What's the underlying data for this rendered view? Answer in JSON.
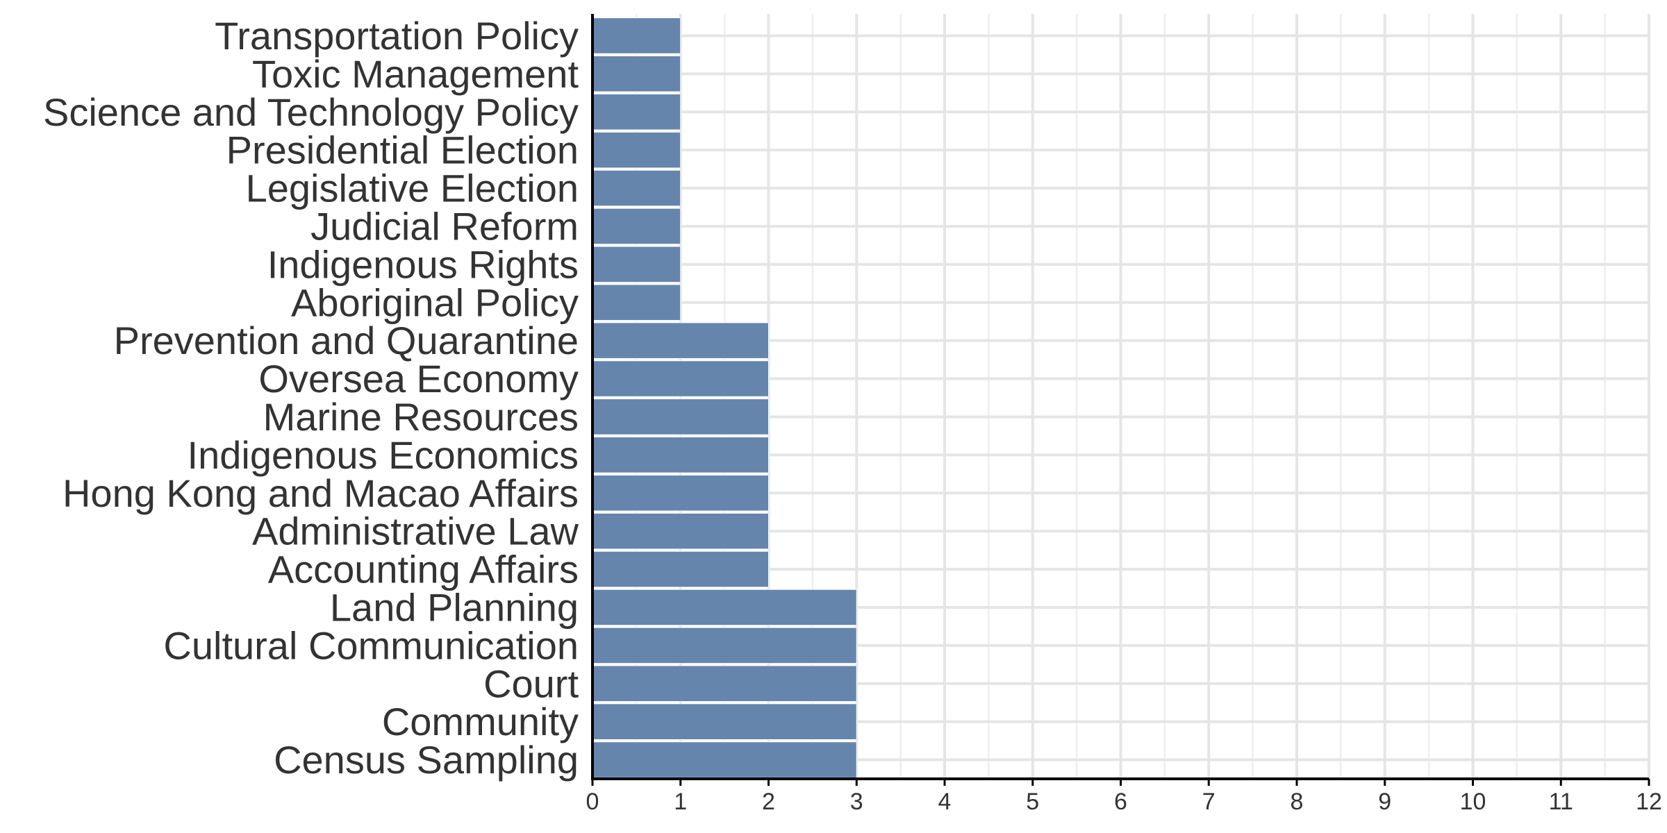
{
  "chart_data": {
    "type": "bar",
    "orientation": "horizontal",
    "title": "",
    "xlabel": "",
    "ylabel": "",
    "categories": [
      "Transportation Policy",
      "Toxic Management",
      "Science and Technology Policy",
      "Presidential Election",
      "Legislative Election",
      "Judicial Reform",
      "Indigenous Rights",
      "Aboriginal Policy",
      "Prevention and Quarantine",
      "Oversea Economy",
      "Marine Resources",
      "Indigenous Economics",
      "Hong Kong and Macao Affairs",
      "Administrative Law",
      "Accounting Affairs",
      "Land Planning",
      "Cultural Communication",
      "Court",
      "Community",
      "Census Sampling"
    ],
    "values": [
      1,
      1,
      1,
      1,
      1,
      1,
      1,
      1,
      2,
      2,
      2,
      2,
      2,
      2,
      2,
      3,
      3,
      3,
      3,
      3
    ],
    "xlim": [
      0,
      12
    ],
    "x_ticks": [
      0,
      1,
      2,
      3,
      4,
      5,
      6,
      7,
      8,
      9,
      10,
      11,
      12
    ],
    "x_tick_labels": [
      "0",
      "1",
      "2",
      "3",
      "4",
      "5",
      "6",
      "7",
      "8",
      "9",
      "10",
      "11",
      "12"
    ],
    "grid": true,
    "legend": "none",
    "colors": {
      "bar": "#6685ad",
      "grid": "#e5e5e5",
      "axis": "#000000",
      "text": "#333333"
    }
  }
}
